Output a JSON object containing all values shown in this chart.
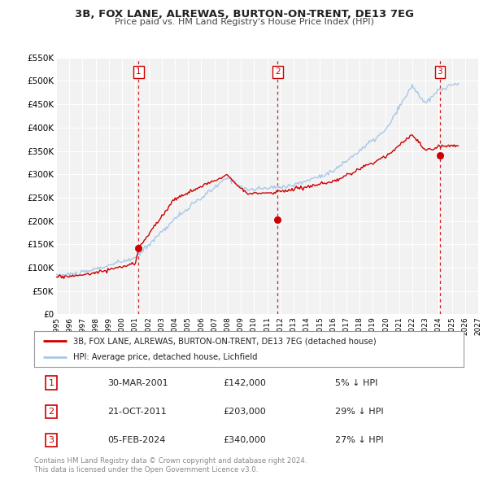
{
  "title": "3B, FOX LANE, ALREWAS, BURTON-ON-TRENT, DE13 7EG",
  "subtitle": "Price paid vs. HM Land Registry's House Price Index (HPI)",
  "hpi_color": "#a8c8e8",
  "price_color": "#cc0000",
  "plot_bg": "#f2f2f2",
  "ylim": [
    0,
    550000
  ],
  "yticks": [
    0,
    50000,
    100000,
    150000,
    200000,
    250000,
    300000,
    350000,
    400000,
    450000,
    500000,
    550000
  ],
  "ytick_labels": [
    "£0",
    "£50K",
    "£100K",
    "£150K",
    "£200K",
    "£250K",
    "£300K",
    "£350K",
    "£400K",
    "£450K",
    "£500K",
    "£550K"
  ],
  "sale_dates": [
    2001.25,
    2011.8,
    2024.09
  ],
  "sale_prices": [
    142000,
    203000,
    340000
  ],
  "sale_labels": [
    "1",
    "2",
    "3"
  ],
  "legend_entries": [
    "3B, FOX LANE, ALREWAS, BURTON-ON-TRENT, DE13 7EG (detached house)",
    "HPI: Average price, detached house, Lichfield"
  ],
  "table_rows": [
    {
      "num": "1",
      "date": "30-MAR-2001",
      "price": "£142,000",
      "pct": "5% ↓ HPI"
    },
    {
      "num": "2",
      "date": "21-OCT-2011",
      "price": "£203,000",
      "pct": "29% ↓ HPI"
    },
    {
      "num": "3",
      "date": "05-FEB-2024",
      "price": "£340,000",
      "pct": "27% ↓ HPI"
    }
  ],
  "footer": "Contains HM Land Registry data © Crown copyright and database right 2024.\nThis data is licensed under the Open Government Licence v3.0.",
  "xmin": 1995,
  "xmax": 2027
}
